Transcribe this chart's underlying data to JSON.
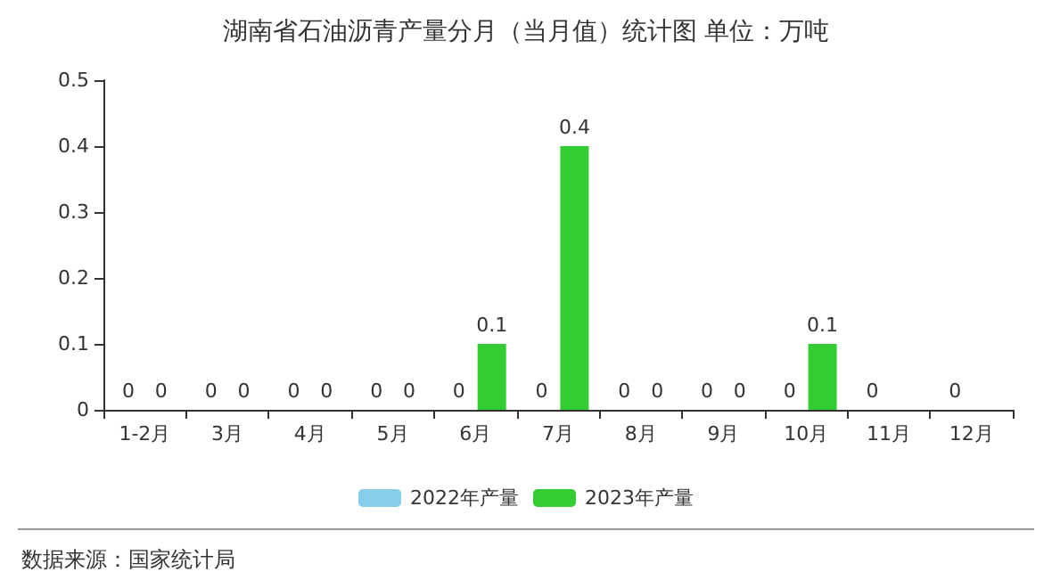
{
  "chart_data": {
    "type": "bar",
    "title": "湖南省石油沥青产量分月（当月值）统计图 单位：万吨",
    "categories": [
      "1-2月",
      "3月",
      "4月",
      "5月",
      "6月",
      "7月",
      "8月",
      "9月",
      "10月",
      "11月",
      "12月"
    ],
    "series": [
      {
        "name": "2022年产量",
        "color": "#87ceeb",
        "values": [
          0,
          0,
          0,
          0,
          0,
          0,
          0,
          0,
          0,
          0,
          0
        ]
      },
      {
        "name": "2023年产量",
        "color": "#33cc33",
        "values": [
          0,
          0,
          0,
          0,
          0.1,
          0.4,
          0,
          0,
          0.1,
          null,
          null
        ]
      }
    ],
    "ylim": [
      0,
      0.5
    ],
    "yticks": [
      0,
      0.1,
      0.2,
      0.3,
      0.4,
      0.5
    ],
    "grid": false,
    "legend": "bottom",
    "data_labels": true,
    "annotations": [
      "数据来源：国家统计局"
    ]
  }
}
